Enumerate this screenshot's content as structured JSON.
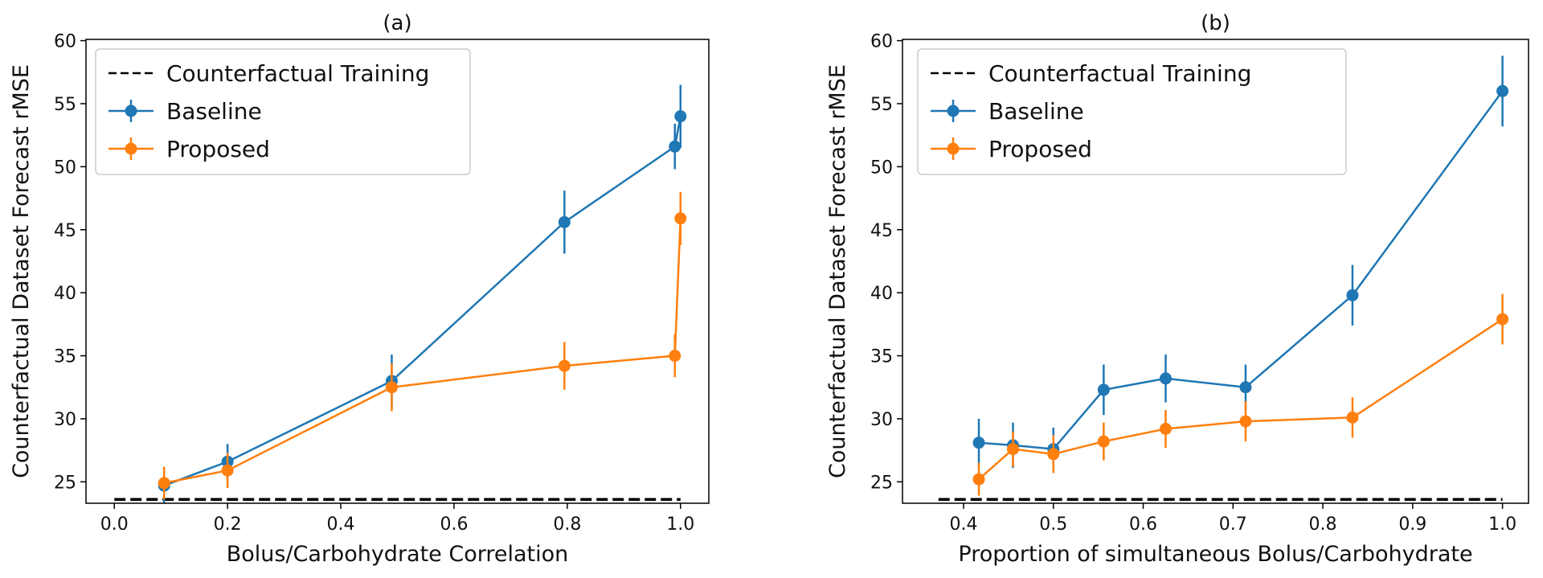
{
  "chart_data": [
    {
      "type": "line",
      "title": "(a)",
      "xlabel": "Bolus/Carbohydrate Correlation",
      "ylabel": "Counterfactual Dataset Forecast rMSE",
      "xlim": [
        -0.05,
        1.05
      ],
      "ylim": [
        23.3,
        60.1
      ],
      "xticks": [
        0.0,
        0.2,
        0.4,
        0.6,
        0.8,
        1.0
      ],
      "xtick_labels": [
        "0.0",
        "0.2",
        "0.4",
        "0.6",
        "0.8",
        "1.0"
      ],
      "yticks": [
        25,
        30,
        35,
        40,
        45,
        50,
        55,
        60
      ],
      "ytick_labels": [
        "25",
        "30",
        "35",
        "40",
        "45",
        "50",
        "55",
        "60"
      ],
      "grid": false,
      "legend_position": "top-left",
      "reference_line": {
        "name": "Counterfactual Training",
        "y": 23.6,
        "x": [
          0.0,
          1.0
        ],
        "color": "#000000",
        "style": "dashed"
      },
      "series": [
        {
          "name": "Baseline",
          "color": "#1f77b4",
          "x": [
            0.088,
            0.2,
            0.49,
            0.795,
            0.99,
            1.0
          ],
          "y": [
            24.7,
            26.6,
            33.0,
            45.6,
            51.6,
            54.0
          ],
          "err": [
            1.4,
            1.4,
            2.1,
            2.5,
            1.8,
            2.5
          ]
        },
        {
          "name": "Proposed",
          "color": "#ff7f0e",
          "x": [
            0.088,
            0.2,
            0.49,
            0.795,
            0.99,
            1.0
          ],
          "y": [
            24.9,
            25.9,
            32.5,
            34.2,
            35.0,
            45.9
          ],
          "err": [
            1.3,
            1.4,
            1.9,
            1.9,
            1.7,
            2.1
          ]
        }
      ]
    },
    {
      "type": "line",
      "title": "(b)",
      "xlabel": "Proportion of simultaneous Bolus/Carbohydrate",
      "ylabel": "Counterfactual Dataset Forecast rMSE",
      "xlim": [
        0.332,
        1.029
      ],
      "ylim": [
        23.3,
        60.1
      ],
      "xticks": [
        0.4,
        0.5,
        0.6,
        0.7,
        0.8,
        0.9,
        1.0
      ],
      "xtick_labels": [
        "0.4",
        "0.5",
        "0.6",
        "0.7",
        "0.8",
        "0.9",
        "1.0"
      ],
      "yticks": [
        25,
        30,
        35,
        40,
        45,
        50,
        55,
        60
      ],
      "ytick_labels": [
        "25",
        "30",
        "35",
        "40",
        "45",
        "50",
        "55",
        "60"
      ],
      "grid": false,
      "legend_position": "top-left",
      "reference_line": {
        "name": "Counterfactual Training",
        "y": 23.6,
        "x": [
          0.372,
          1.0
        ],
        "color": "#000000",
        "style": "dashed"
      },
      "series": [
        {
          "name": "Baseline",
          "color": "#1f77b4",
          "x": [
            0.417,
            0.455,
            0.5,
            0.556,
            0.625,
            0.714,
            0.833,
            1.0
          ],
          "y": [
            28.1,
            27.9,
            27.6,
            32.3,
            33.2,
            32.5,
            39.8,
            56.0
          ],
          "err": [
            1.9,
            1.8,
            1.7,
            2.0,
            1.9,
            1.8,
            2.4,
            2.8
          ]
        },
        {
          "name": "Proposed",
          "color": "#ff7f0e",
          "x": [
            0.417,
            0.455,
            0.5,
            0.556,
            0.625,
            0.714,
            0.833,
            1.0
          ],
          "y": [
            25.2,
            27.6,
            27.2,
            28.2,
            29.2,
            29.8,
            30.1,
            37.9
          ],
          "err": [
            1.3,
            1.4,
            1.5,
            1.5,
            1.5,
            1.6,
            1.6,
            2.0
          ]
        }
      ]
    }
  ]
}
